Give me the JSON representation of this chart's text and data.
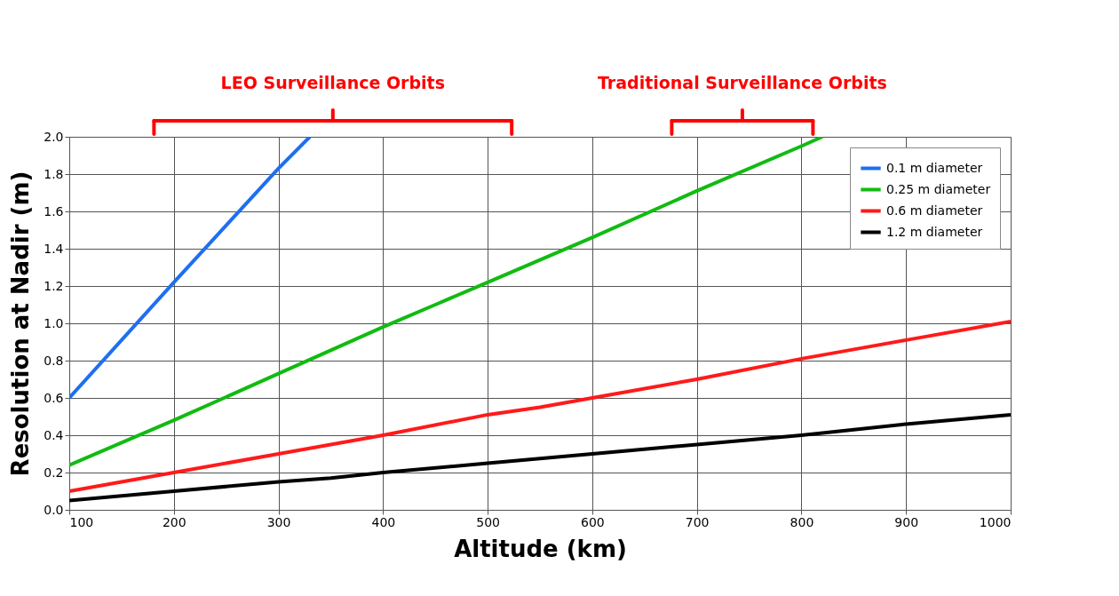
{
  "chart_data": {
    "type": "line",
    "xlabel": "Altitude (km)",
    "ylabel": "Resolution at Nadir (m)",
    "xlim": [
      100,
      1000
    ],
    "xticks": [
      100,
      200,
      300,
      400,
      500,
      600,
      700,
      800,
      900,
      1000
    ],
    "ylim": [
      0,
      2
    ],
    "yticks": [
      {
        "value": 0,
        "label": "0.0"
      },
      {
        "value": 0.2,
        "label": "0.2"
      },
      {
        "value": 0.4,
        "label": "0.4"
      },
      {
        "value": 0.6,
        "label": "0.6"
      },
      {
        "value": 0.8,
        "label": "0.8"
      },
      {
        "value": 1,
        "label": "1.0"
      },
      {
        "value": 1.2,
        "label": "1.2"
      },
      {
        "value": 1.4,
        "label": "1.4"
      },
      {
        "value": 1.6,
        "label": "1.6"
      },
      {
        "value": 1.8,
        "label": "1.8"
      },
      {
        "value": 2,
        "label": "2.0"
      }
    ],
    "grid": true,
    "legend": "top right",
    "marker": "none",
    "line_style": "solid",
    "series": [
      {
        "name": "0.1 m diameter",
        "color": "#1e6ff0",
        "x": [
          100,
          200,
          300,
          330
        ],
        "values": [
          0.6,
          1.22,
          1.83,
          2.0
        ]
      },
      {
        "name": "0.25 m diameter",
        "color": "#11bb11",
        "x": [
          100,
          200,
          300,
          400,
          450,
          500,
          600,
          700,
          800,
          820
        ],
        "values": [
          0.24,
          0.48,
          0.73,
          0.98,
          1.1,
          1.22,
          1.46,
          1.71,
          1.95,
          2.0
        ]
      },
      {
        "name": "0.6 m diameter",
        "color": "#ff1a1a",
        "x": [
          100,
          150,
          200,
          300,
          400,
          500,
          550,
          600,
          700,
          800,
          850,
          900,
          1000
        ],
        "values": [
          0.1,
          0.15,
          0.2,
          0.3,
          0.4,
          0.51,
          0.55,
          0.6,
          0.7,
          0.81,
          0.86,
          0.91,
          1.01
        ]
      },
      {
        "name": "1.2 m diameter",
        "color": "#000000",
        "x": [
          100,
          200,
          300,
          350,
          400,
          500,
          600,
          700,
          800,
          900,
          1000
        ],
        "values": [
          0.05,
          0.1,
          0.15,
          0.17,
          0.2,
          0.25,
          0.3,
          0.35,
          0.4,
          0.46,
          0.51
        ]
      }
    ],
    "annotations": [
      "LEO Surveillance Orbits",
      "Traditional Surveillance Orbits"
    ]
  }
}
